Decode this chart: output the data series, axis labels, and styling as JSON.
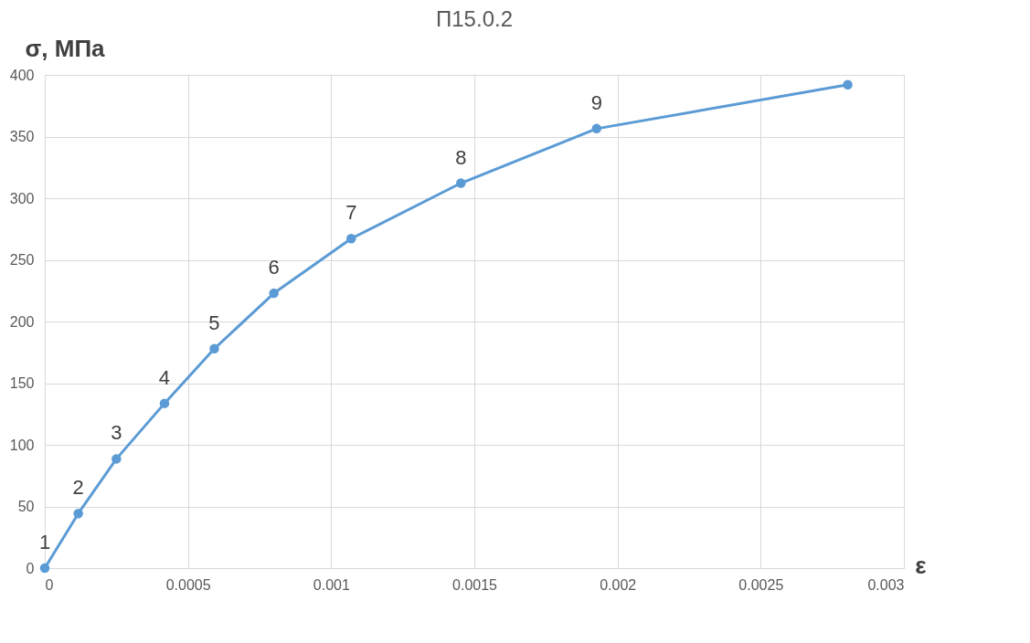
{
  "chart_data": {
    "type": "line",
    "title": "П15.0.2",
    "xlabel": "ε",
    "ylabel": "σ, МПа",
    "x": [
      0,
      0.000117,
      0.00025,
      0.000418,
      0.000592,
      0.0008,
      0.00107,
      0.001453,
      0.001927,
      0.002804
    ],
    "series": [
      {
        "color": "#5b9bd5",
        "values": [
          0,
          44.3,
          88.6,
          133.6,
          177.9,
          222.9,
          267.2,
          312.2,
          356.4,
          392
        ]
      }
    ],
    "xlim": [
      0,
      0.003
    ],
    "xticks": [
      0,
      0.0005,
      0.001,
      0.0015,
      0.002,
      0.0025,
      0.003
    ],
    "ylim": [
      0,
      400
    ],
    "yticks": [
      0,
      50,
      100,
      150,
      200,
      250,
      300,
      350,
      400
    ],
    "grid": true,
    "marker": "circle",
    "line_style": "solid",
    "annotations": [
      {
        "text": "1",
        "x": 0,
        "y": 0
      },
      {
        "text": "2",
        "x": 0.000117,
        "y": 44.3
      },
      {
        "text": "3",
        "x": 0.00025,
        "y": 88.6
      },
      {
        "text": "4",
        "x": 0.000418,
        "y": 133.6
      },
      {
        "text": "5",
        "x": 0.000592,
        "y": 177.9
      },
      {
        "text": "6",
        "x": 0.0008,
        "y": 222.9
      },
      {
        "text": "7",
        "x": 0.00107,
        "y": 267.2
      },
      {
        "text": "8",
        "x": 0.001453,
        "y": 312.2
      },
      {
        "text": "9",
        "x": 0.001927,
        "y": 356.4
      }
    ]
  }
}
